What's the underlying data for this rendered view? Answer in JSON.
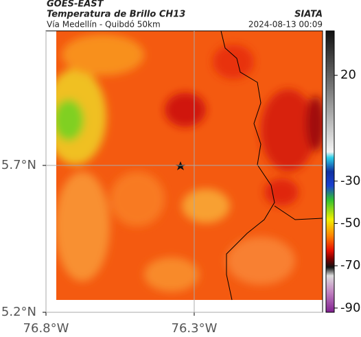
{
  "header": {
    "source": "GOES-EAST",
    "title": "Temperatura de Brillo CH13",
    "org": "SIATA",
    "subtitle": "Vía Medellín - Quibdó 50km",
    "timestamp": "2024-08-13 00:09"
  },
  "map": {
    "xlim": [
      -76.8,
      -75.867
    ],
    "ylim": [
      5.2,
      6.158
    ],
    "xticks": [
      {
        "value": -76.8,
        "label": "76.8°W"
      },
      {
        "value": -76.3,
        "label": "76.3°W"
      }
    ],
    "yticks": [
      {
        "value": 5.2,
        "label": "5.2°N"
      },
      {
        "value": 5.7,
        "label": "5.7°N"
      }
    ],
    "grid": true
  },
  "colorbar": {
    "lim": [
      -92,
      41
    ],
    "ticks": [
      20,
      -30,
      -50,
      -70,
      -90
    ]
  }
}
